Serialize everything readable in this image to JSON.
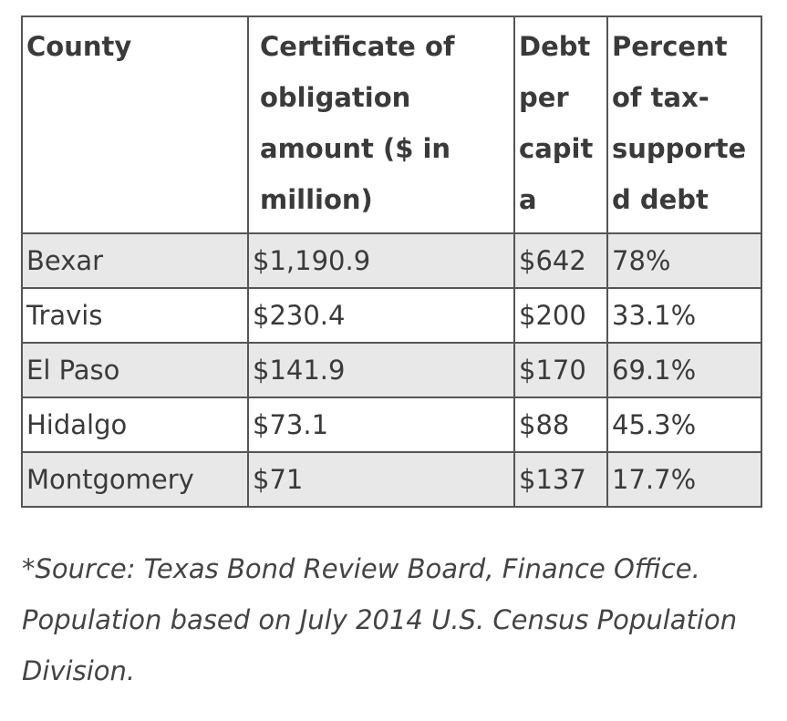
{
  "table": {
    "headers": {
      "county": "County",
      "certificate": "Certificate of obligation amount ($ in million)",
      "debt_per_capita": "Debt per capita",
      "percent": "Percent of tax-supported debt"
    },
    "rows": [
      {
        "county": "Bexar",
        "certificate": "$1,190.9",
        "debt_per_capita": "$642",
        "percent": "78%"
      },
      {
        "county": "Travis",
        "certificate": "$230.4",
        "debt_per_capita": "$200",
        "percent": "33.1%"
      },
      {
        "county": "El Paso",
        "certificate": "$141.9",
        "debt_per_capita": "$170",
        "percent": "69.1%"
      },
      {
        "county": "Hidalgo",
        "certificate": "$73.1",
        "debt_per_capita": "$88",
        "percent": "45.3%"
      },
      {
        "county": "Montgomery",
        "certificate": "$71",
        "debt_per_capita": "$137",
        "percent": "17.7%"
      }
    ]
  },
  "source_note": "*Source: Texas Bond Review Board, Finance Office. Population based on July 2014 U.S. Census Population Division.",
  "colors": {
    "border": "#555555",
    "stripe": "#e8e8e8",
    "text": "#3a3a3a"
  }
}
